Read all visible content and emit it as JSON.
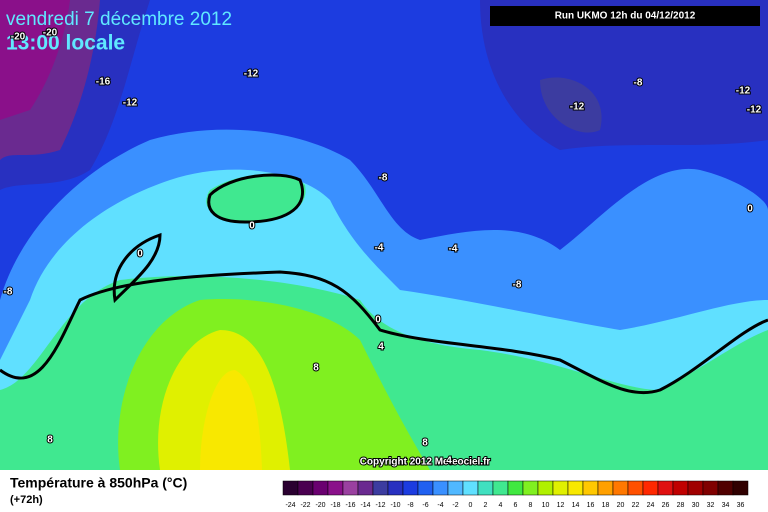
{
  "header": {
    "date": "vendredi 7 décembre 2012",
    "time": "13:00 locale",
    "run": "Run UKMO 12h du 04/12/2012"
  },
  "map": {
    "contour_labels": [
      -20,
      -20,
      -16,
      -12,
      -12,
      -8,
      -12,
      -12,
      -12,
      -8,
      0,
      0,
      -4,
      -4,
      0,
      -8,
      -8,
      0,
      4,
      8,
      8,
      8,
      4
    ],
    "copyright": "Copyright 2012 Meteociel.fr"
  },
  "legend": {
    "title": "Température à 850hPa (°C)",
    "lead": "(+72h)",
    "scale": [
      {
        "value": -24,
        "color": "#2a0030"
      },
      {
        "value": -22,
        "color": "#4a0050"
      },
      {
        "value": -20,
        "color": "#6a0070"
      },
      {
        "value": -18,
        "color": "#8a108a"
      },
      {
        "value": -16,
        "color": "#9a40a0"
      },
      {
        "value": -14,
        "color": "#6a2a90"
      },
      {
        "value": -12,
        "color": "#3c3ca0"
      },
      {
        "value": -10,
        "color": "#2830c0"
      },
      {
        "value": -8,
        "color": "#1c3ce0"
      },
      {
        "value": -6,
        "color": "#2060f0"
      },
      {
        "value": -4,
        "color": "#3a90ff"
      },
      {
        "value": -2,
        "color": "#50b8ff"
      },
      {
        "value": 0,
        "color": "#60e0ff"
      },
      {
        "value": 2,
        "color": "#40e0c0"
      },
      {
        "value": 4,
        "color": "#40e890"
      },
      {
        "value": 6,
        "color": "#40e840"
      },
      {
        "value": 8,
        "color": "#80f020"
      },
      {
        "value": 10,
        "color": "#b0f000"
      },
      {
        "value": 12,
        "color": "#e0f000"
      },
      {
        "value": 14,
        "color": "#f8e800"
      },
      {
        "value": 16,
        "color": "#ffc800"
      },
      {
        "value": 18,
        "color": "#ffa000"
      },
      {
        "value": 20,
        "color": "#ff7800"
      },
      {
        "value": 22,
        "color": "#ff5000"
      },
      {
        "value": 24,
        "color": "#ff2800"
      },
      {
        "value": 26,
        "color": "#e01010"
      },
      {
        "value": 28,
        "color": "#c00000"
      },
      {
        "value": 30,
        "color": "#a00000"
      },
      {
        "value": 32,
        "color": "#800000"
      },
      {
        "value": 34,
        "color": "#500000"
      },
      {
        "value": 36,
        "color": "#300000"
      }
    ]
  }
}
